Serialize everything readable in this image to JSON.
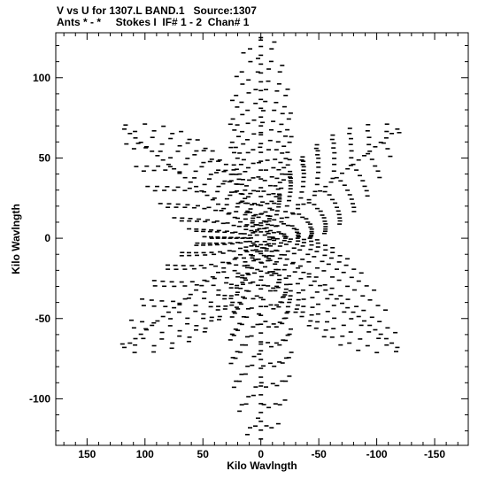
{
  "chart_data": {
    "type": "scatter",
    "title_line1": "V vs U for 1307.L BAND.1   Source:1307",
    "title_line2": "Ants * - *     Stokes I  IF# 1 - 2  Chan# 1",
    "xlabel": "Kilo Wavlngth",
    "ylabel": "Kilo Wavlngth",
    "xlim": [
      177,
      -179
    ],
    "ylim": [
      -129,
      128
    ],
    "x_ticks": [
      150,
      100,
      50,
      0,
      -50,
      -100,
      -150
    ],
    "x_tick_labels": [
      "150",
      "100",
      "50",
      "0",
      "-50",
      "-100",
      "-150"
    ],
    "y_ticks": [
      100,
      50,
      0,
      -50,
      -100
    ],
    "y_tick_labels": [
      "100",
      "50",
      "0",
      "-50",
      "-100"
    ],
    "grid": false,
    "marker": "short horizontal dash",
    "pattern": {
      "description": "six-armed star uv coverage",
      "arm_angles_deg": [
        30,
        90,
        150,
        210,
        270,
        330
      ],
      "tip_radius": 140,
      "valley_radius": 45
    }
  }
}
